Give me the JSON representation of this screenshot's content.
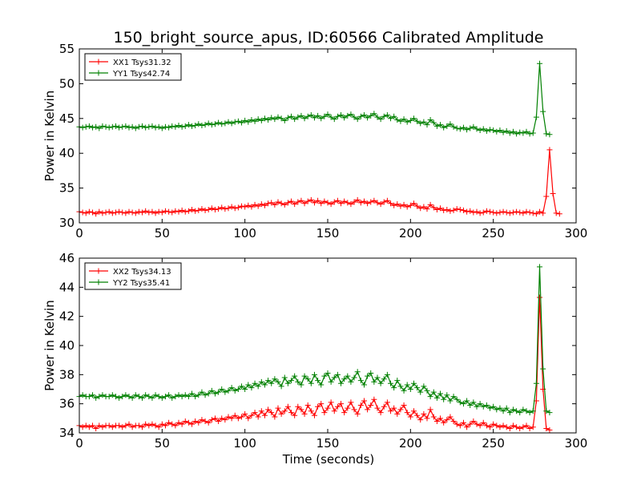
{
  "figure": {
    "title": "150_bright_source_apus, ID:60566 Calibrated Amplitude",
    "xlabel": "Time (seconds)"
  },
  "chart_data": [
    {
      "type": "line",
      "title": "150_bright_source_apus, ID:60566 Calibrated Amplitude",
      "xlabel": "",
      "ylabel": "Power in Kelvin",
      "xlim": [
        0,
        300
      ],
      "ylim": [
        30,
        55
      ],
      "xticks": [
        0,
        50,
        100,
        150,
        200,
        250,
        300
      ],
      "yticks": [
        30,
        35,
        40,
        45,
        50,
        55
      ],
      "grid": false,
      "legend_position": "top-left",
      "markers": "plus",
      "x_step": 2,
      "series": [
        {
          "name": "XX1 Tsys31.32",
          "color": "#ff0000",
          "values": [
            31.6,
            31.5,
            31.4,
            31.6,
            31.5,
            31.3,
            31.6,
            31.4,
            31.5,
            31.6,
            31.4,
            31.5,
            31.6,
            31.5,
            31.4,
            31.6,
            31.5,
            31.4,
            31.6,
            31.5,
            31.7,
            31.5,
            31.6,
            31.4,
            31.6,
            31.5,
            31.7,
            31.6,
            31.5,
            31.7,
            31.6,
            31.8,
            31.6,
            31.7,
            31.9,
            31.7,
            31.8,
            32.0,
            31.8,
            31.9,
            32.1,
            31.9,
            32.0,
            32.2,
            32.0,
            32.1,
            32.3,
            32.1,
            32.2,
            32.4,
            32.3,
            32.5,
            32.3,
            32.6,
            32.4,
            32.7,
            32.5,
            32.8,
            32.9,
            32.6,
            33.0,
            32.8,
            32.6,
            32.9,
            33.1,
            32.7,
            33.0,
            33.2,
            32.8,
            33.1,
            33.3,
            32.9,
            33.2,
            32.8,
            33.1,
            32.9,
            32.7,
            33.0,
            33.2,
            32.8,
            33.1,
            32.9,
            32.7,
            33.0,
            33.3,
            32.9,
            33.1,
            32.8,
            33.0,
            33.2,
            32.9,
            32.7,
            33.0,
            33.2,
            32.8,
            32.5,
            32.7,
            32.4,
            32.6,
            32.3,
            32.5,
            32.8,
            32.4,
            32.1,
            32.3,
            32.0,
            32.6,
            32.2,
            31.9,
            32.1,
            31.8,
            31.9,
            31.7,
            31.8,
            32.0,
            31.9,
            31.8,
            31.6,
            31.7,
            31.5,
            31.6,
            31.4,
            31.5,
            31.7,
            31.6,
            31.5,
            31.4,
            31.5,
            31.6,
            31.5,
            31.4,
            31.5,
            31.6,
            31.5,
            31.4,
            31.6,
            31.5,
            31.4,
            31.3,
            31.6,
            31.4,
            33.8,
            40.5,
            34.2,
            31.4,
            31.3
          ]
        },
        {
          "name": "YY1 Tsys42.74",
          "color": "#008000",
          "values": [
            43.8,
            43.7,
            43.8,
            43.9,
            43.7,
            43.8,
            43.6,
            43.9,
            43.8,
            43.7,
            43.8,
            43.9,
            43.7,
            43.8,
            43.9,
            43.7,
            43.8,
            43.6,
            43.8,
            43.9,
            43.7,
            43.8,
            43.9,
            43.7,
            43.8,
            43.6,
            43.8,
            43.7,
            43.9,
            43.8,
            44.0,
            43.8,
            43.9,
            44.1,
            43.9,
            44.0,
            44.2,
            44.0,
            44.1,
            44.3,
            44.1,
            44.2,
            44.4,
            44.2,
            44.3,
            44.5,
            44.3,
            44.5,
            44.6,
            44.4,
            44.7,
            44.5,
            44.8,
            44.6,
            44.9,
            44.7,
            45.0,
            44.8,
            45.1,
            44.9,
            45.2,
            45.0,
            44.7,
            45.1,
            45.3,
            44.9,
            45.2,
            45.4,
            45.0,
            45.3,
            45.5,
            45.1,
            45.4,
            45.0,
            45.3,
            45.6,
            45.2,
            44.9,
            45.3,
            45.5,
            45.1,
            45.4,
            45.6,
            45.2,
            44.9,
            45.3,
            45.5,
            45.1,
            45.4,
            45.7,
            45.2,
            44.9,
            45.3,
            45.5,
            45.0,
            45.3,
            44.8,
            44.6,
            44.9,
            44.5,
            44.7,
            45.0,
            44.6,
            44.3,
            44.5,
            44.1,
            44.8,
            44.4,
            43.9,
            44.1,
            43.7,
            43.9,
            44.2,
            43.8,
            43.6,
            43.5,
            43.7,
            43.4,
            43.6,
            43.8,
            43.5,
            43.3,
            43.5,
            43.2,
            43.4,
            43.3,
            43.1,
            43.3,
            43.0,
            43.2,
            42.9,
            43.1,
            42.8,
            43.0,
            42.9,
            43.1,
            42.8,
            42.9,
            45.2,
            52.9,
            46.0,
            42.8,
            42.7
          ]
        }
      ]
    },
    {
      "type": "line",
      "title": "",
      "xlabel": "Time (seconds)",
      "ylabel": "Power in Kelvin",
      "xlim": [
        0,
        300
      ],
      "ylim": [
        34,
        46
      ],
      "xticks": [
        0,
        50,
        100,
        150,
        200,
        250,
        300
      ],
      "yticks": [
        34,
        36,
        38,
        40,
        42,
        44,
        46
      ],
      "grid": false,
      "legend_position": "top-left",
      "markers": "plus",
      "x_step": 2,
      "series": [
        {
          "name": "XX2 Tsys34.13",
          "color": "#ff0000",
          "values": [
            34.5,
            34.4,
            34.5,
            34.4,
            34.5,
            34.3,
            34.5,
            34.4,
            34.5,
            34.5,
            34.4,
            34.5,
            34.5,
            34.4,
            34.5,
            34.6,
            34.4,
            34.5,
            34.5,
            34.4,
            34.6,
            34.5,
            34.6,
            34.5,
            34.4,
            34.6,
            34.5,
            34.7,
            34.6,
            34.5,
            34.7,
            34.6,
            34.8,
            34.7,
            34.6,
            34.8,
            34.7,
            34.9,
            34.8,
            34.7,
            34.9,
            35.0,
            34.8,
            35.0,
            34.9,
            35.1,
            35.0,
            35.2,
            35.0,
            35.1,
            35.3,
            35.0,
            35.2,
            35.4,
            35.1,
            35.5,
            35.2,
            35.6,
            35.4,
            35.1,
            35.7,
            35.3,
            35.5,
            35.8,
            35.4,
            35.2,
            35.8,
            35.6,
            35.3,
            35.9,
            35.5,
            35.2,
            35.8,
            36.0,
            35.4,
            35.7,
            36.1,
            35.5,
            35.8,
            36.0,
            35.4,
            35.7,
            36.1,
            35.6,
            35.3,
            35.9,
            36.2,
            35.6,
            35.9,
            36.3,
            35.7,
            35.4,
            35.8,
            36.1,
            35.5,
            35.7,
            35.3,
            35.6,
            35.9,
            35.4,
            35.1,
            35.5,
            35.2,
            34.9,
            35.3,
            35.0,
            35.6,
            35.1,
            34.8,
            35.0,
            34.7,
            34.9,
            35.1,
            34.8,
            34.6,
            34.5,
            34.7,
            34.4,
            34.6,
            34.8,
            34.6,
            34.5,
            34.7,
            34.5,
            34.4,
            34.6,
            34.5,
            34.4,
            34.5,
            34.4,
            34.3,
            34.5,
            34.4,
            34.3,
            34.4,
            34.5,
            34.3,
            34.4,
            36.2,
            43.3,
            37.0,
            34.3,
            34.2
          ]
        },
        {
          "name": "YY2 Tsys35.41",
          "color": "#008000",
          "values": [
            36.5,
            36.6,
            36.5,
            36.5,
            36.6,
            36.4,
            36.5,
            36.6,
            36.5,
            36.5,
            36.6,
            36.5,
            36.4,
            36.5,
            36.6,
            36.5,
            36.4,
            36.6,
            36.5,
            36.4,
            36.6,
            36.5,
            36.4,
            36.6,
            36.5,
            36.4,
            36.5,
            36.6,
            36.4,
            36.5,
            36.6,
            36.5,
            36.6,
            36.5,
            36.7,
            36.5,
            36.6,
            36.8,
            36.6,
            36.7,
            36.9,
            36.7,
            36.8,
            37.0,
            36.8,
            36.9,
            37.1,
            36.9,
            37.0,
            37.2,
            37.0,
            37.3,
            37.1,
            37.4,
            37.2,
            37.5,
            37.3,
            37.6,
            37.4,
            37.7,
            37.5,
            37.2,
            37.8,
            37.4,
            37.6,
            37.9,
            37.5,
            37.3,
            37.9,
            37.7,
            37.4,
            38.0,
            37.6,
            37.3,
            37.9,
            38.1,
            37.5,
            37.8,
            38.0,
            37.4,
            37.7,
            37.9,
            37.5,
            37.8,
            38.2,
            37.6,
            37.3,
            37.9,
            38.1,
            37.5,
            37.8,
            37.4,
            37.7,
            38.0,
            37.4,
            37.1,
            37.6,
            37.2,
            36.9,
            37.3,
            37.0,
            37.4,
            37.1,
            36.8,
            37.2,
            36.9,
            36.5,
            36.8,
            36.4,
            36.7,
            36.3,
            36.6,
            36.2,
            36.5,
            36.3,
            36.1,
            36.0,
            36.2,
            35.9,
            36.1,
            35.8,
            36.0,
            35.8,
            35.9,
            35.7,
            35.8,
            35.6,
            35.7,
            35.5,
            35.7,
            35.4,
            35.6,
            35.5,
            35.4,
            35.6,
            35.5,
            35.4,
            35.5,
            37.4,
            45.4,
            38.4,
            35.5,
            35.4
          ]
        }
      ]
    }
  ]
}
